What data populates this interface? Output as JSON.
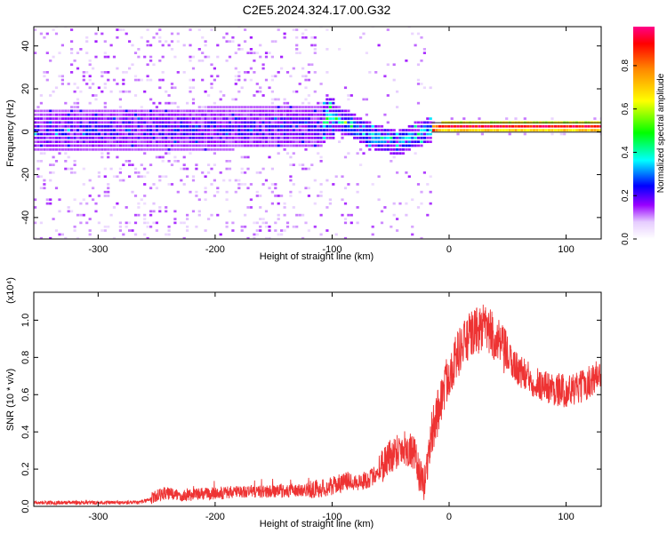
{
  "title": "C2E5.2024.324.17.00.G32",
  "chart_data": [
    {
      "type": "heatmap",
      "xlabel": "Height of straight line (km)",
      "ylabel": "Frequency (Hz)",
      "xlim": [
        -355,
        130
      ],
      "ylim": [
        -50,
        49
      ],
      "xticks": [
        -300,
        -200,
        -100,
        0,
        100
      ],
      "xtick_labels": [
        "-300",
        "-200",
        "-100",
        "0",
        "100"
      ],
      "yticks": [
        -40,
        -20,
        0,
        20,
        40
      ],
      "ytick_labels": [
        "-40",
        "-20",
        "0",
        "20",
        "40"
      ],
      "ridge": {
        "x": [
          -355,
          -110,
          -105,
          -95,
          -85,
          -75,
          -65,
          -55,
          -45,
          -35,
          -25,
          -15,
          -5,
          5,
          130
        ],
        "y": [
          0,
          2,
          7,
          5,
          3,
          0,
          -3,
          -4,
          -6,
          -3,
          -1,
          1,
          2,
          2,
          2
        ]
      },
      "colorbar": {
        "label": "Normalized spectral amplitude",
        "range": [
          0,
          0.98
        ],
        "ticks": [
          0.0,
          0.2,
          0.4,
          0.6,
          0.8
        ],
        "tick_labels": [
          "0.0",
          "0.2",
          "0.4",
          "0.6",
          "0.8"
        ]
      },
      "grid": false
    },
    {
      "type": "line",
      "xlabel": "Height of straight line (km)",
      "ylabel": "SNR (10 * v/v)",
      "yscale_label": "(x10⁴)",
      "xlim": [
        -355,
        130
      ],
      "ylim": [
        0,
        1.15
      ],
      "xticks": [
        -300,
        -200,
        -100,
        0,
        100
      ],
      "xtick_labels": [
        "-300",
        "-200",
        "-100",
        "0",
        "100"
      ],
      "yticks": [
        0.0,
        0.2,
        0.4,
        0.6,
        0.8,
        1.0
      ],
      "ytick_labels": [
        "0.0",
        "0.2",
        "0.4",
        "0.6",
        "0.8",
        "1.0"
      ],
      "color": "#ee3333",
      "grid": false,
      "series": [
        {
          "x": [
            -355,
            -300,
            -265,
            -255,
            -245,
            -230,
            -200,
            -170,
            -140,
            -120,
            -105,
            -95,
            -85,
            -75,
            -65,
            -55,
            -45,
            -38,
            -30,
            -22,
            -15,
            -8,
            0,
            10,
            20,
            30,
            40,
            50,
            60,
            70,
            80,
            90,
            100,
            110,
            120,
            130
          ],
          "y": [
            0.02,
            0.02,
            0.02,
            0.04,
            0.07,
            0.06,
            0.07,
            0.08,
            0.08,
            0.09,
            0.1,
            0.12,
            0.14,
            0.13,
            0.16,
            0.24,
            0.3,
            0.32,
            0.28,
            0.1,
            0.38,
            0.55,
            0.72,
            0.85,
            0.93,
            0.96,
            0.9,
            0.8,
            0.73,
            0.68,
            0.65,
            0.63,
            0.62,
            0.63,
            0.67,
            0.72
          ]
        }
      ]
    }
  ]
}
